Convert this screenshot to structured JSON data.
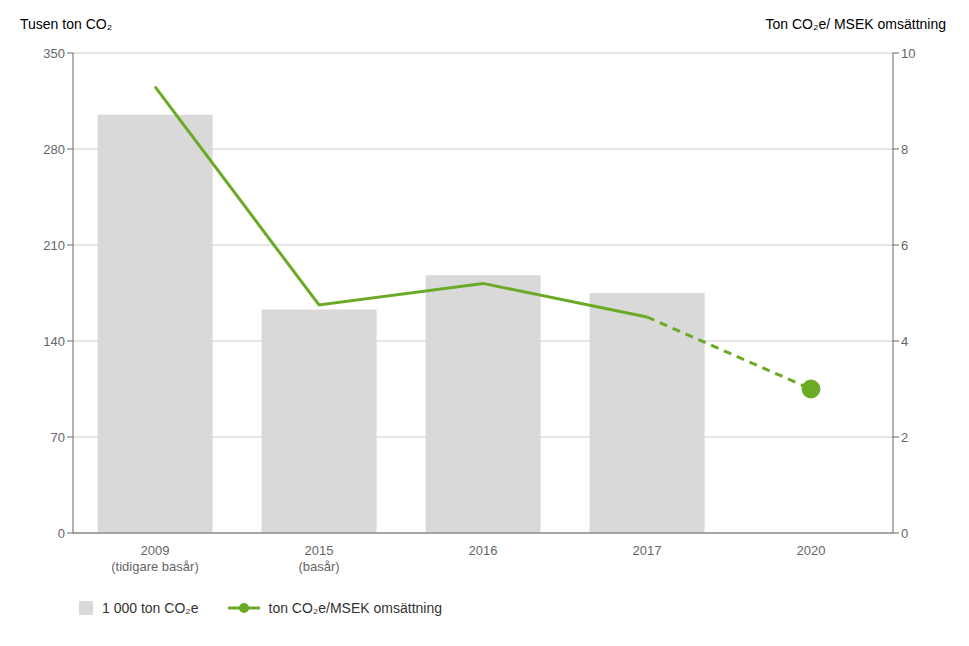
{
  "chart_data": {
    "type": "bar",
    "categories": [
      "2009\n(tidigare basår)",
      "2015\n(basår)",
      "2016",
      "2017",
      "2020"
    ],
    "y_label": "Tusen ton CO₂",
    "y2_label": "Ton CO₂e/ MSEK omsättning",
    "series": [
      {
        "name": "1 000 ton CO₂e",
        "type": "bar",
        "color": "#d9d9d9",
        "values": [
          305,
          163,
          188,
          175,
          null
        ]
      },
      {
        "name": "ton CO₂e/MSEK omsättning",
        "type": "line",
        "axis": "y2",
        "color": "#6aaa25",
        "line_style": "solid",
        "marker": "none",
        "values": [
          9.3,
          4.75,
          5.2,
          4.5,
          null
        ]
      },
      {
        "name": "ton CO₂e/MSEK omsättning",
        "type": "line",
        "axis": "y2",
        "color": "#6aaa25",
        "line_style": "dashed",
        "marker": "none",
        "values": [
          null,
          null,
          null,
          4.5,
          3.0
        ]
      },
      {
        "name": "ton CO₂e/MSEK omsättning",
        "type": "scatter",
        "axis": "y2",
        "color": "#6aaa25",
        "marker": "circle",
        "values": [
          null,
          null,
          null,
          null,
          3.0
        ]
      }
    ],
    "ylim": [
      0,
      350
    ],
    "yticks": [
      0,
      70,
      140,
      210,
      280,
      350
    ],
    "y2lim": [
      0,
      10
    ],
    "y2ticks": [
      0,
      2,
      4,
      6,
      8,
      10
    ],
    "grid": true,
    "legend": "bottom"
  }
}
